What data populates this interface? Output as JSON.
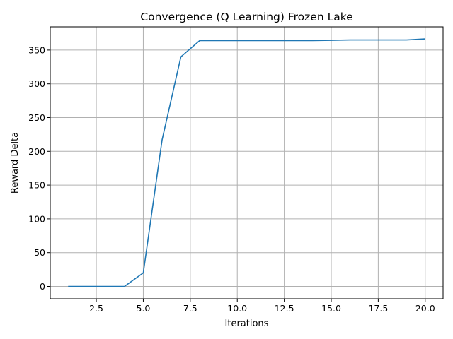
{
  "chart_data": {
    "type": "line",
    "title": "Convergence (Q Learning) Frozen Lake",
    "xlabel": "Iterations",
    "ylabel": "Reward Delta",
    "xlim": [
      0.05,
      20.95
    ],
    "ylim": [
      -18.3,
      384.4
    ],
    "xticks": [
      2.5,
      5.0,
      7.5,
      10.0,
      12.5,
      15.0,
      17.5,
      20.0
    ],
    "xtick_labels": [
      "2.5",
      "5.0",
      "7.5",
      "10.0",
      "12.5",
      "15.0",
      "17.5",
      "20.0"
    ],
    "yticks": [
      0,
      50,
      100,
      150,
      200,
      250,
      300,
      350
    ],
    "ytick_labels": [
      "0",
      "50",
      "100",
      "150",
      "200",
      "250",
      "300",
      "350"
    ],
    "grid": true,
    "series": [
      {
        "color": "#1f77b4",
        "x": [
          1,
          2,
          3,
          4,
          5,
          6,
          7,
          8,
          9,
          10,
          11,
          12,
          13,
          14,
          15,
          16,
          17,
          18,
          19,
          20
        ],
        "y": [
          0,
          0,
          0,
          0,
          20,
          217,
          340,
          364,
          364,
          364,
          364,
          364,
          364,
          364,
          364.5,
          365,
          365,
          365,
          365,
          366.5
        ]
      }
    ]
  }
}
